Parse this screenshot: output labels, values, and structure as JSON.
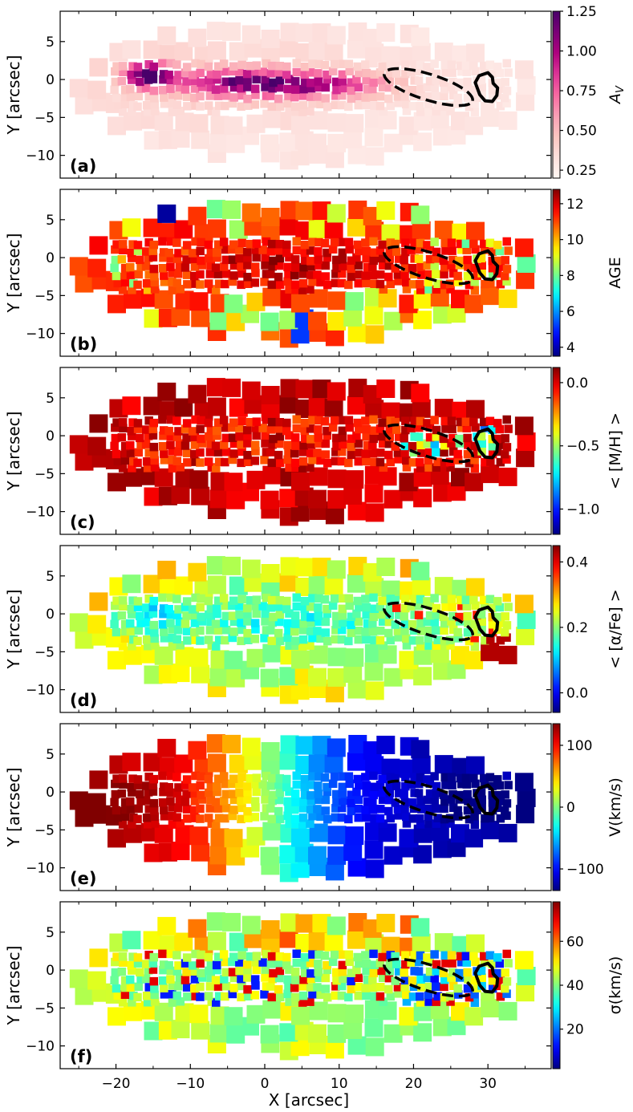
{
  "figure": {
    "xlabel": "X [arcsec]",
    "ylabel": "Y [arcsec]",
    "xlim": [
      -27.5,
      38.5
    ],
    "ylim": [
      -13,
      9
    ],
    "xticks": [
      -20,
      -10,
      0,
      10,
      20,
      30
    ],
    "yticks": [
      5,
      0,
      -5,
      -10
    ],
    "ellipse": {
      "cx": 22,
      "cy": -1,
      "rx": 6.2,
      "ry": 1.7,
      "angle_deg": -17
    },
    "contour_center": [
      29.8,
      -0.7
    ],
    "mask_circle": {
      "x": -3,
      "y": -10.5,
      "r": 1.7
    }
  },
  "chart_data": [
    {
      "type": "heatmap",
      "panel": "(a)",
      "colorbar_label": "A_V",
      "colorbar_label_display": "A",
      "colorbar_label_sub": "V",
      "clim": [
        0.2,
        1.25
      ],
      "colorbar_ticks": [
        1.25,
        1.0,
        0.75,
        0.5,
        0.25
      ],
      "colorbar_tick_labels": [
        "1.25",
        "1.00",
        "0.75",
        "0.50",
        "0.25"
      ],
      "colormap": "RdPu",
      "field": "extinction",
      "colors": {
        "stops": [
          "#fff7f3",
          "#fde0dd",
          "#fcc5c0",
          "#fa9fb5",
          "#f768a1",
          "#dd3497",
          "#ae017e",
          "#7a0177",
          "#49006a"
        ]
      }
    },
    {
      "type": "heatmap",
      "panel": "(b)",
      "colorbar_label": "AGE",
      "clim": [
        3.5,
        12.8
      ],
      "colorbar_ticks": [
        12,
        10,
        8,
        6,
        4
      ],
      "colorbar_tick_labels": [
        "12",
        "10",
        "8",
        "6",
        "4"
      ],
      "colormap": "jet",
      "field": "age"
    },
    {
      "type": "heatmap",
      "panel": "(c)",
      "colorbar_label": "< [M/H] >",
      "clim": [
        -1.2,
        0.12
      ],
      "colorbar_ticks": [
        0.0,
        -0.5,
        -1.0
      ],
      "colorbar_tick_labels": [
        "0.0",
        "−0.5",
        "−1.0"
      ],
      "colormap": "jet",
      "field": "metallicity"
    },
    {
      "type": "heatmap",
      "panel": "(d)",
      "colorbar_label": "< [α/Fe] >",
      "clim": [
        -0.06,
        0.45
      ],
      "colorbar_ticks": [
        0.4,
        0.2,
        0.0
      ],
      "colorbar_tick_labels": [
        "0.4",
        "0.2",
        "0.0"
      ],
      "colormap": "jet",
      "field": "alpha"
    },
    {
      "type": "heatmap",
      "panel": "(e)",
      "colorbar_label": "V(km/s)",
      "clim": [
        -135,
        135
      ],
      "colorbar_ticks": [
        100,
        0,
        -100
      ],
      "colorbar_tick_labels": [
        "100",
        "0",
        "−100"
      ],
      "colormap": "jet",
      "field": "velocity"
    },
    {
      "type": "heatmap",
      "panel": "(f)",
      "colorbar_label": "σ(km/s)",
      "clim": [
        2,
        78
      ],
      "colorbar_ticks": [
        60,
        40,
        20
      ],
      "colorbar_tick_labels": [
        "60",
        "40",
        "20"
      ],
      "colormap": "jet",
      "field": "dispersion"
    }
  ]
}
